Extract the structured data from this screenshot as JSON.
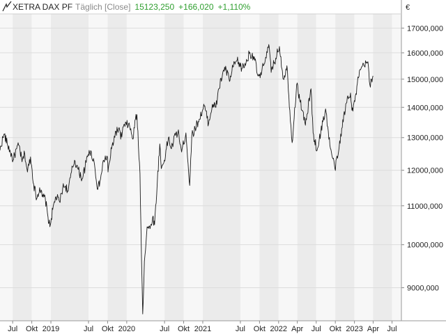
{
  "header": {
    "instrument": "XETRA DAX PF",
    "interval": "Täglich [Close]",
    "last": "15123,250",
    "change_abs": "+166,020",
    "change_pct": "+1,110%"
  },
  "colors": {
    "line": "#1a1a1a",
    "positive": "#2e9e2e",
    "band_light": "#f7f7f7",
    "band_dark": "#ebebeb",
    "grid": "#dcdcdc",
    "axis_text": "#222222"
  },
  "chart_data": {
    "type": "line",
    "title": "XETRA DAX PF",
    "xlabel": "",
    "ylabel": "€",
    "y_scale": "log",
    "ylim": [
      8300,
      17600
    ],
    "xlim": [
      "2018-05-01",
      "2023-08-15"
    ],
    "grid": true,
    "y_ticks": [
      9000,
      10000,
      11000,
      12000,
      13000,
      14000,
      15000,
      16000,
      17000
    ],
    "y_tick_labels": [
      "9000,000",
      "10000,000",
      "11000,000",
      "12000,000",
      "13000,000",
      "14000,000",
      "15000,000",
      "16000,000",
      "17000,000"
    ],
    "x_ticks": [
      {
        "date": "2018-07-01",
        "label": "Jul"
      },
      {
        "date": "2018-10-01",
        "label": "Okt"
      },
      {
        "date": "2019-01-01",
        "label": "2019"
      },
      {
        "date": "2019-07-01",
        "label": "Jul"
      },
      {
        "date": "2019-10-01",
        "label": "Okt"
      },
      {
        "date": "2020-01-01",
        "label": "2020"
      },
      {
        "date": "2020-07-01",
        "label": "Jul"
      },
      {
        "date": "2020-10-01",
        "label": "Okt"
      },
      {
        "date": "2021-01-01",
        "label": "2021"
      },
      {
        "date": "2021-07-01",
        "label": "Jul"
      },
      {
        "date": "2021-10-01",
        "label": "Okt"
      },
      {
        "date": "2022-01-01",
        "label": "2022"
      },
      {
        "date": "2022-04-01",
        "label": "Apr"
      },
      {
        "date": "2022-07-01",
        "label": "Jul"
      },
      {
        "date": "2022-10-01",
        "label": "Okt"
      },
      {
        "date": "2023-01-01",
        "label": "2023"
      },
      {
        "date": "2023-04-01",
        "label": "Apr"
      },
      {
        "date": "2023-07-01",
        "label": "Jul"
      }
    ],
    "series": [
      {
        "name": "XETRA DAX PF",
        "points": [
          [
            "2018-05-01",
            12600
          ],
          [
            "2018-05-15",
            13000
          ],
          [
            "2018-05-22",
            13100
          ],
          [
            "2018-06-05",
            12800
          ],
          [
            "2018-06-20",
            12550
          ],
          [
            "2018-07-03",
            12300
          ],
          [
            "2018-07-20",
            12650
          ],
          [
            "2018-08-01",
            12750
          ],
          [
            "2018-08-15",
            12250
          ],
          [
            "2018-08-28",
            12500
          ],
          [
            "2018-09-10",
            11950
          ],
          [
            "2018-09-25",
            12400
          ],
          [
            "2018-10-10",
            11600
          ],
          [
            "2018-10-25",
            11200
          ],
          [
            "2018-11-08",
            11500
          ],
          [
            "2018-11-20",
            11250
          ],
          [
            "2018-12-05",
            11200
          ],
          [
            "2018-12-18",
            10700
          ],
          [
            "2018-12-27",
            10450
          ],
          [
            "2019-01-10",
            10900
          ],
          [
            "2019-01-25",
            11250
          ],
          [
            "2019-02-12",
            11100
          ],
          [
            "2019-02-27",
            11500
          ],
          [
            "2019-03-12",
            11550
          ],
          [
            "2019-03-25",
            11400
          ],
          [
            "2019-04-10",
            11950
          ],
          [
            "2019-04-25",
            12300
          ],
          [
            "2019-05-10",
            12050
          ],
          [
            "2019-05-31",
            11750
          ],
          [
            "2019-06-15",
            12100
          ],
          [
            "2019-07-04",
            12600
          ],
          [
            "2019-07-25",
            12350
          ],
          [
            "2019-08-15",
            11450
          ],
          [
            "2019-08-28",
            11750
          ],
          [
            "2019-09-12",
            12300
          ],
          [
            "2019-09-30",
            12400
          ],
          [
            "2019-10-03",
            11950
          ],
          [
            "2019-10-20",
            12650
          ],
          [
            "2019-11-10",
            13200
          ],
          [
            "2019-11-28",
            13250
          ],
          [
            "2019-12-03",
            12950
          ],
          [
            "2019-12-16",
            13350
          ],
          [
            "2020-01-10",
            13450
          ],
          [
            "2020-01-31",
            12950
          ],
          [
            "2020-02-12",
            13600
          ],
          [
            "2020-02-19",
            13750
          ],
          [
            "2020-02-26",
            12750
          ],
          [
            "2020-03-05",
            11900
          ],
          [
            "2020-03-12",
            9700
          ],
          [
            "2020-03-18",
            8440
          ],
          [
            "2020-03-26",
            9600
          ],
          [
            "2020-04-08",
            10450
          ],
          [
            "2020-04-22",
            10400
          ],
          [
            "2020-05-05",
            10700
          ],
          [
            "2020-05-14",
            10500
          ],
          [
            "2020-05-27",
            11650
          ],
          [
            "2020-06-08",
            12800
          ],
          [
            "2020-06-15",
            12050
          ],
          [
            "2020-06-30",
            12300
          ],
          [
            "2020-07-20",
            13000
          ],
          [
            "2020-08-03",
            12650
          ],
          [
            "2020-08-25",
            13150
          ],
          [
            "2020-09-08",
            13100
          ],
          [
            "2020-09-21",
            12550
          ],
          [
            "2020-10-12",
            13150
          ],
          [
            "2020-10-30",
            11560
          ],
          [
            "2020-11-09",
            13050
          ],
          [
            "2020-11-25",
            13300
          ],
          [
            "2020-12-15",
            13600
          ],
          [
            "2021-01-08",
            14050
          ],
          [
            "2021-01-29",
            13450
          ],
          [
            "2021-02-16",
            14100
          ],
          [
            "2021-03-05",
            14000
          ],
          [
            "2021-03-19",
            14650
          ],
          [
            "2021-04-16",
            15450
          ],
          [
            "2021-05-12",
            14950
          ],
          [
            "2021-05-26",
            15450
          ],
          [
            "2021-06-15",
            15700
          ],
          [
            "2021-07-08",
            15400
          ],
          [
            "2021-07-28",
            15600
          ],
          [
            "2021-08-13",
            15980
          ],
          [
            "2021-09-06",
            15850
          ],
          [
            "2021-09-20",
            15200
          ],
          [
            "2021-10-04",
            15050
          ],
          [
            "2021-10-20",
            15500
          ],
          [
            "2021-11-05",
            16050
          ],
          [
            "2021-11-17",
            16220
          ],
          [
            "2021-11-26",
            15250
          ],
          [
            "2021-12-10",
            15600
          ],
          [
            "2022-01-05",
            16250
          ],
          [
            "2022-01-24",
            15000
          ],
          [
            "2022-02-10",
            15500
          ],
          [
            "2022-02-24",
            13900
          ],
          [
            "2022-03-07",
            12840
          ],
          [
            "2022-03-29",
            14800
          ],
          [
            "2022-04-25",
            13900
          ],
          [
            "2022-05-10",
            13400
          ],
          [
            "2022-06-06",
            14650
          ],
          [
            "2022-06-16",
            13150
          ],
          [
            "2022-07-05",
            12600
          ],
          [
            "2022-08-15",
            13950
          ],
          [
            "2022-09-05",
            12750
          ],
          [
            "2022-09-29",
            12050
          ],
          [
            "2022-10-14",
            12450
          ],
          [
            "2022-11-01",
            13300
          ],
          [
            "2022-11-30",
            14400
          ],
          [
            "2022-12-13",
            14500
          ],
          [
            "2022-12-20",
            13900
          ],
          [
            "2023-01-03",
            14200
          ],
          [
            "2023-01-20",
            15050
          ],
          [
            "2023-02-02",
            15400
          ],
          [
            "2023-02-16",
            15500
          ],
          [
            "2023-03-07",
            15650
          ],
          [
            "2023-03-16",
            14800
          ],
          [
            "2023-03-24",
            15000
          ],
          [
            "2023-03-31",
            15123.25
          ]
        ]
      }
    ]
  }
}
